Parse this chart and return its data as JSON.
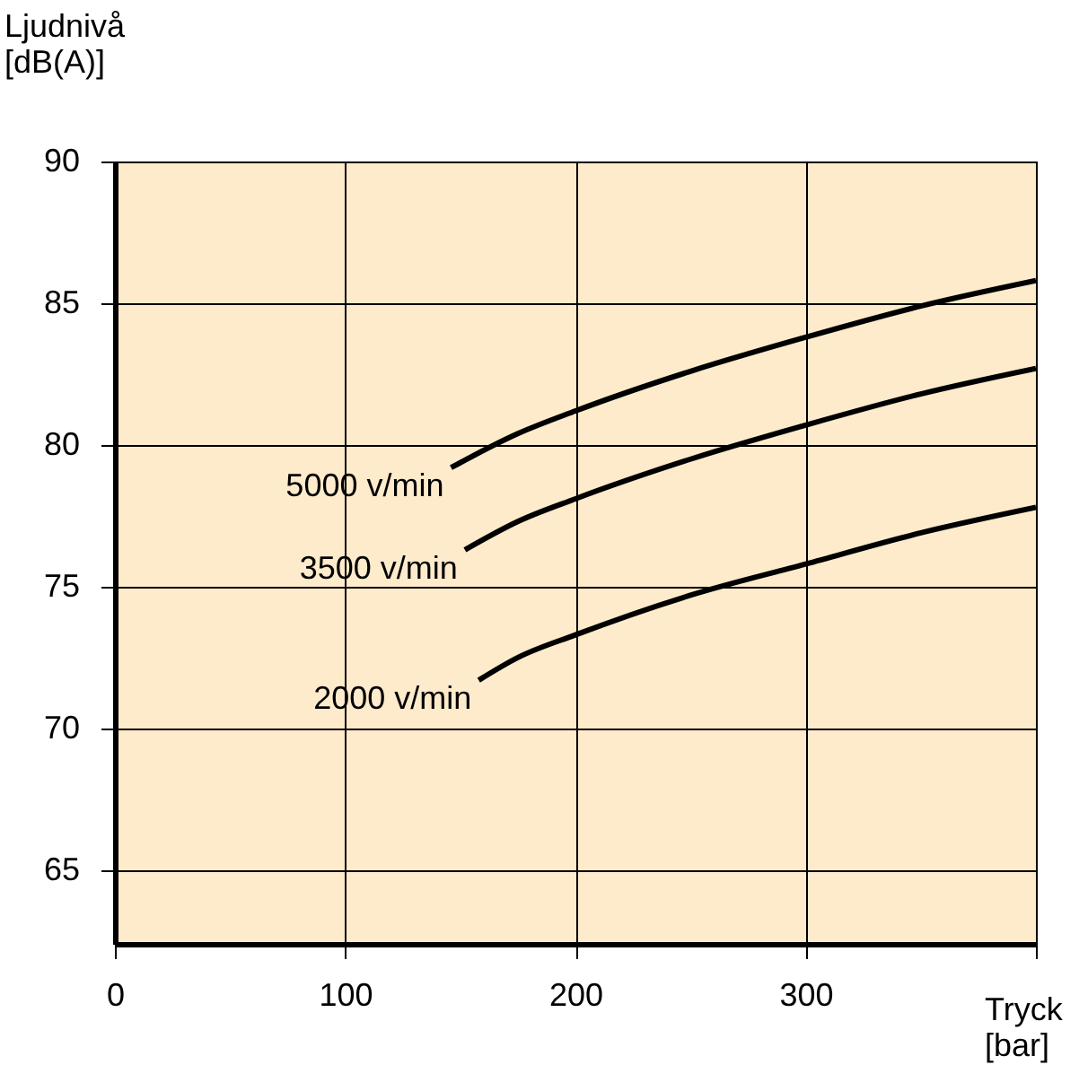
{
  "chart_data": {
    "type": "line",
    "xlabel": "Tryck\n[bar]",
    "ylabel": "Ljudnivå\n[dB(A)]",
    "xlim": [
      0,
      400
    ],
    "ylim": [
      62.4,
      90
    ],
    "xticks": [
      0,
      100,
      200,
      300,
      {
        "value": 400,
        "label": null
      }
    ],
    "yticks": [
      65,
      70,
      75,
      80,
      85,
      90
    ],
    "grid": true,
    "legend": false,
    "line_style": "solid",
    "marker": "none",
    "series": [
      {
        "name": "5000 v/min",
        "color": "#000000",
        "x": [
          146,
          175,
          200,
          250,
          300,
          350,
          400
        ],
        "values": [
          79.2,
          80.4,
          81.2,
          82.6,
          83.8,
          84.9,
          85.8
        ]
      },
      {
        "name": "3500 v/min",
        "color": "#000000",
        "x": [
          152,
          175,
          200,
          250,
          300,
          350,
          400
        ],
        "values": [
          76.3,
          77.3,
          78.1,
          79.5,
          80.7,
          81.8,
          82.7
        ]
      },
      {
        "name": "2000 v/min",
        "color": "#000000",
        "x": [
          158,
          175,
          200,
          250,
          300,
          350,
          400
        ],
        "values": [
          71.7,
          72.5,
          73.3,
          74.7,
          75.8,
          76.9,
          77.8
        ]
      }
    ]
  }
}
